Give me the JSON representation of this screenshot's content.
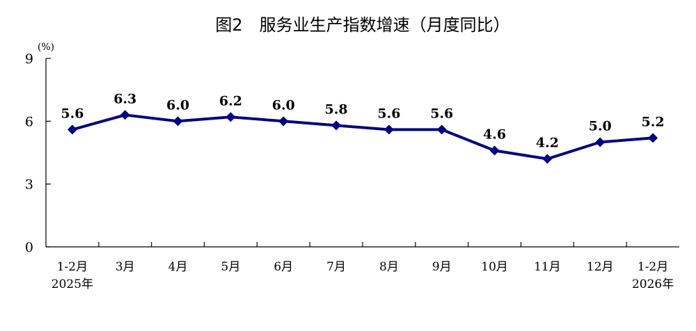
{
  "chart_data": {
    "type": "line",
    "title": "图2　服务业生产指数增速（月度同比）",
    "ylabel": "(%)",
    "xlabel": "",
    "ylim": [
      0,
      9
    ],
    "yticks": [
      0,
      3,
      6,
      9
    ],
    "grid": false,
    "categories": [
      "1-2月",
      "3月",
      "4月",
      "5月",
      "6月",
      "7月",
      "8月",
      "9月",
      "10月",
      "11月",
      "12月",
      "1-2月"
    ],
    "category_years": [
      "2025年",
      "",
      "",
      "",
      "",
      "",
      "",
      "",
      "",
      "",
      "",
      "2026年"
    ],
    "series": [
      {
        "values": [
          5.6,
          6.3,
          6.0,
          6.2,
          6.0,
          5.8,
          5.6,
          5.6,
          4.6,
          4.2,
          5.0,
          5.2
        ],
        "labels": [
          "5.6",
          "6.3",
          "6.0",
          "6.2",
          "6.0",
          "5.8",
          "5.6",
          "5.6",
          "4.6",
          "4.2",
          "5.0",
          "5.2"
        ],
        "color": "#000080"
      }
    ]
  }
}
